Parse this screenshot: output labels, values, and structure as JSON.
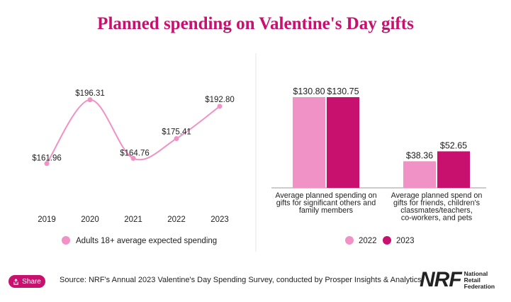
{
  "title": "Planned spending on Valentine's Day gifts",
  "chart_data": [
    {
      "type": "line",
      "x": [
        "2019",
        "2020",
        "2021",
        "2022",
        "2023"
      ],
      "series": [
        {
          "name": "Adults 18+ average expected spending",
          "values": [
            161.96,
            196.31,
            164.76,
            175.41,
            192.8
          ],
          "labels": [
            "$161.96",
            "$196.31",
            "$164.76",
            "$175.41",
            "$192.80"
          ]
        }
      ],
      "color": "#f092c5",
      "legend": "bottom"
    },
    {
      "type": "bar",
      "categories": [
        "Average planned spending on gifts for significant others and family members",
        "Average planned spend on gifts for friends, children's classmates/teachers, co-workers, and pets"
      ],
      "category_lines": [
        [
          "Average planned spending on",
          "gifts for significant others and",
          "family members"
        ],
        [
          "Average planned spend on",
          "gifts for friends, children's",
          "classmates/teachers,",
          "co-workers, and pets"
        ]
      ],
      "series": [
        {
          "name": "2022",
          "values": [
            130.8,
            38.36
          ],
          "labels": [
            "$130.80",
            "$38.36"
          ],
          "color": "#f092c5"
        },
        {
          "name": "2023",
          "values": [
            130.75,
            52.65
          ],
          "labels": [
            "$130.75",
            "$52.65"
          ],
          "color": "#c8106f"
        }
      ],
      "legend": "bottom"
    }
  ],
  "footer": {
    "share_label": "Share",
    "source": "Source: NRF's Annual 2023 Valentine's Day Spending Survey, conducted by Prosper Insights & Analytics",
    "logo_mark": "NRF",
    "logo_words": [
      "National",
      "Retail",
      "Federation"
    ]
  },
  "colors": {
    "accent": "#c8106f",
    "light": "#f092c5",
    "divider": "#e6e6e6"
  }
}
